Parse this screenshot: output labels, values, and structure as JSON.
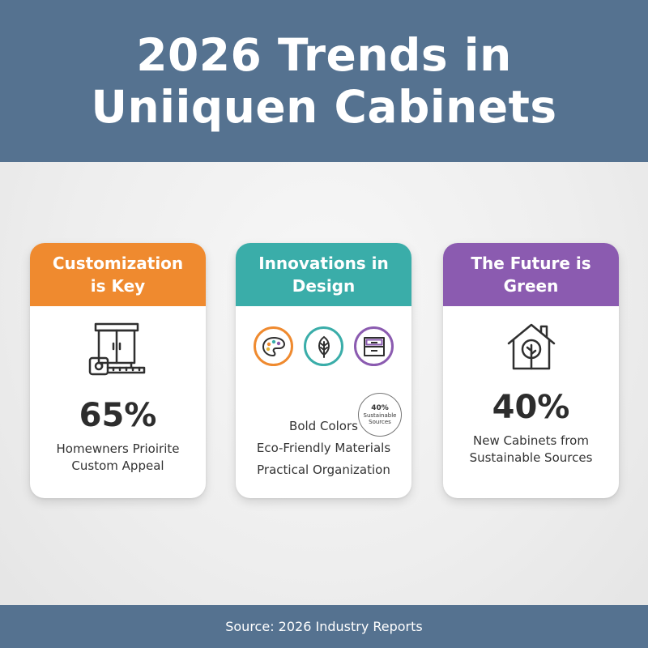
{
  "header": {
    "title_line1": "2026 Trends in",
    "title_line2": "Uniiquen Cabinets",
    "bg_color": "#557290"
  },
  "cards": [
    {
      "title_line1": "Customization",
      "title_line2": "is Key",
      "color": "#ef8a2f",
      "icon": "cabinet-with-tape-measure-icon",
      "stat": "65%",
      "desc_line1": "Homewners Prioirite",
      "desc_line2": "Custom Appeal"
    },
    {
      "title_line1": "Innovations in",
      "title_line2": "Design",
      "color": "#3aada9",
      "icons": [
        "palette-icon",
        "leaf-icon",
        "drawer-icon"
      ],
      "icon_colors": [
        "#ef8a2f",
        "#3aada9",
        "#8b5bb0"
      ],
      "features": [
        "Bold Colors",
        "Eco-Friendly Materials",
        "Practical Organization"
      ],
      "badge_pct": "40%",
      "badge_line1": "Sustainable",
      "badge_line2": "Sources"
    },
    {
      "title_line1": "The Future is",
      "title_line2": "Green",
      "color": "#8b5bb0",
      "icon": "house-with-tree-icon",
      "stat": "40%",
      "desc_line1": "New Cabinets from",
      "desc_line2": "Sustainable Sources"
    }
  ],
  "footer": {
    "source": "Source: 2026 Industry Reports"
  }
}
